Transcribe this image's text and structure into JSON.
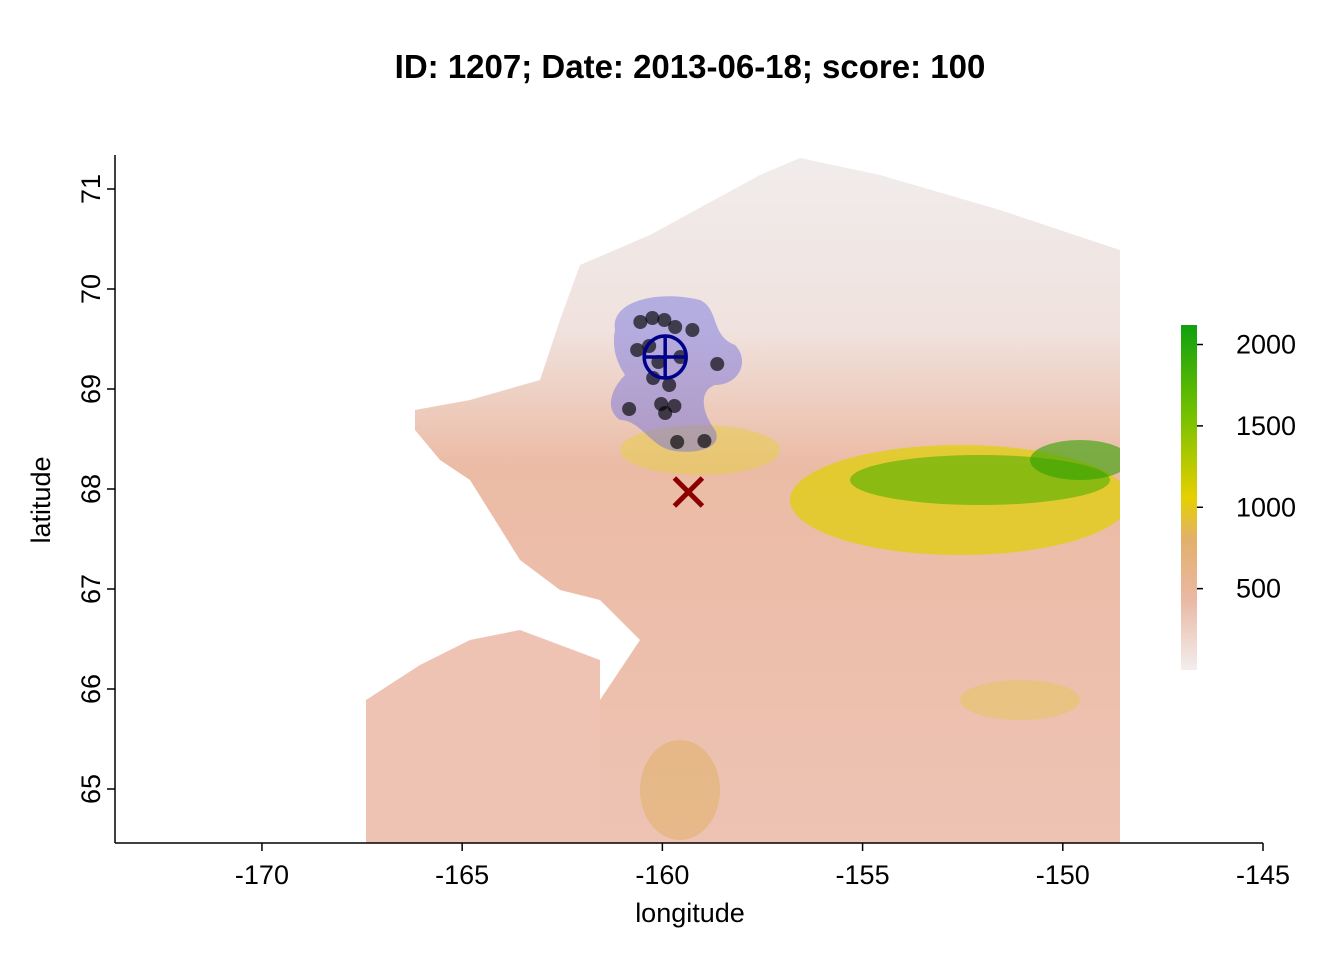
{
  "chart_data": {
    "type": "scatter",
    "title": "ID: 1207;  Date: 2013-06-18;  score: 100",
    "xlabel": "longitude",
    "ylabel": "latitude",
    "xlim": [
      -173.67,
      -145
    ],
    "ylim": [
      64.46,
      71.34
    ],
    "xticks": [
      -170,
      -165,
      -160,
      -155,
      -150,
      -145
    ],
    "yticks": [
      65,
      66,
      67,
      68,
      69,
      70,
      71
    ],
    "points": {
      "color": "#000000",
      "x": [
        -160.55,
        -160.25,
        -159.95,
        -159.68,
        -159.25,
        -160.63,
        -160.33,
        -158.63,
        -160.23,
        -159.83,
        -160.03,
        -159.93,
        -159.7,
        -160.83,
        -159.63,
        -158.95,
        -160.1,
        -159.55
      ],
      "y": [
        69.67,
        69.71,
        69.69,
        69.62,
        69.59,
        69.39,
        69.43,
        69.25,
        69.11,
        69.04,
        68.85,
        68.76,
        68.83,
        68.8,
        68.47,
        68.48,
        69.27,
        69.32
      ]
    },
    "centroid": {
      "color": "#00008b",
      "x": -159.93,
      "y": 69.32
    },
    "marker": {
      "color": "#8b0000",
      "x": -159.35,
      "y": 67.97
    },
    "colorbar": {
      "lim": [
        0,
        2120
      ],
      "ticks": [
        500,
        1000,
        1500,
        2000
      ]
    }
  }
}
